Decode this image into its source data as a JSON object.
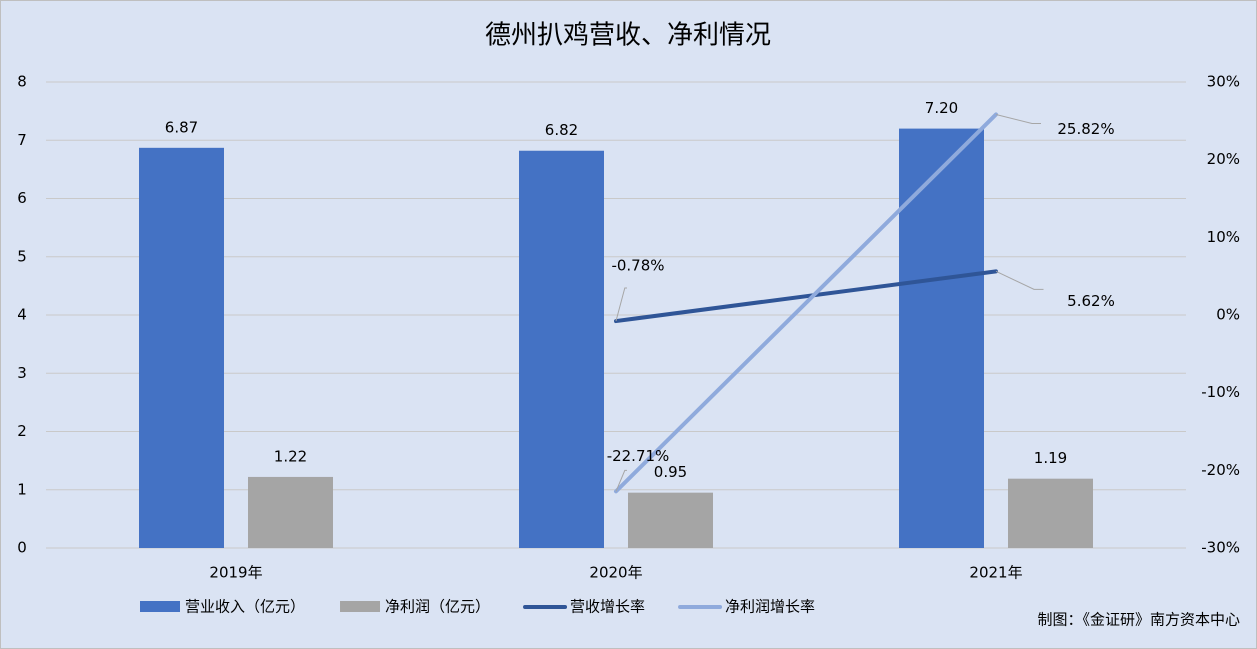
{
  "chart_data": {
    "type": "bar-line",
    "title": "德州扒鸡营收、净利情况",
    "categories": [
      "2019年",
      "2020年",
      "2021年"
    ],
    "series": [
      {
        "name": "营业收入（亿元）",
        "type": "bar",
        "color": "#4472c4",
        "values": [
          6.87,
          6.82,
          7.2
        ],
        "value_labels": [
          "6.87",
          "6.82",
          "7.20"
        ]
      },
      {
        "name": "净利润（亿元）",
        "type": "bar",
        "color": "#a5a5a5",
        "values": [
          1.22,
          0.95,
          1.19
        ]
      },
      {
        "name": "营收增长率",
        "type": "line",
        "axis": "y2",
        "color": "#2f5597",
        "values": [
          null,
          -0.78,
          5.62
        ],
        "value_labels": [
          null,
          "-0.78%",
          "5.62%"
        ]
      },
      {
        "name": "净利润增长率",
        "type": "line",
        "axis": "y2",
        "color": "#8faadc",
        "values": [
          null,
          -22.71,
          25.82
        ],
        "value_labels": [
          null,
          "-22.71%",
          "25.82%"
        ]
      }
    ],
    "ylim": [
      0,
      8
    ],
    "yticks": [
      0,
      1,
      2,
      3,
      4,
      5,
      6,
      7,
      8
    ],
    "y2lim": [
      -30,
      30
    ],
    "y2ticks": [
      {
        "value": -30,
        "label": "-30%"
      },
      {
        "value": -20,
        "label": "-20%"
      },
      {
        "value": -10,
        "label": "-10%"
      },
      {
        "value": 0,
        "label": "0%"
      },
      {
        "value": 10,
        "label": "10%"
      },
      {
        "value": 20,
        "label": "20%"
      },
      {
        "value": 30,
        "label": "30%"
      }
    ],
    "grid": true,
    "legend": "bottom",
    "source": "制图：《金证研》南方资本中心"
  }
}
